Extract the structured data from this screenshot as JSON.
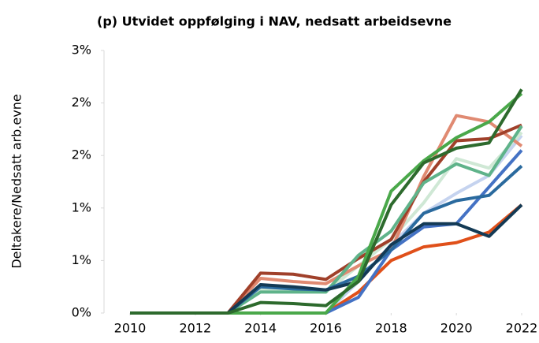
{
  "chart_data": {
    "type": "line",
    "title": "(p) Utvidet oppfølging i NAV, nedsatt arbeidsevne",
    "y_label": "Deltakere/Nedsatt arb.evne",
    "x": [
      2010,
      2011,
      2012,
      2013,
      2014,
      2015,
      2016,
      2017,
      2018,
      2019,
      2020,
      2021,
      2022
    ],
    "xlim": [
      2010,
      2022
    ],
    "xticks": [
      2010,
      2012,
      2014,
      2016,
      2018,
      2020,
      2022
    ],
    "ylim": [
      0,
      2.5
    ],
    "yticks": [
      {
        "value": 0,
        "label": "0%"
      },
      {
        "value": 0.5,
        "label": "1%"
      },
      {
        "value": 1,
        "label": "1%"
      },
      {
        "value": 1.5,
        "label": "2%"
      },
      {
        "value": 2,
        "label": "2%"
      },
      {
        "value": 2.5,
        "label": "3%"
      }
    ],
    "grid": false,
    "series": [
      {
        "color": "#c5d3ef",
        "values": [
          0,
          0,
          0,
          0,
          0,
          0,
          0,
          0.3,
          0.65,
          0.95,
          1.14,
          1.31,
          1.69
        ]
      },
      {
        "color": "#cfe8d5",
        "values": [
          0,
          0,
          0,
          0,
          0.22,
          0.22,
          0.2,
          0.45,
          0.7,
          1.05,
          1.47,
          1.38,
          1.72
        ]
      },
      {
        "color": "#e08a72",
        "values": [
          0,
          0,
          0,
          0,
          0.33,
          0.3,
          0.28,
          0.45,
          0.6,
          1.3,
          1.88,
          1.82,
          1.59
        ]
      },
      {
        "color": "#a0402a",
        "values": [
          0,
          0,
          0,
          0,
          0.38,
          0.37,
          0.32,
          0.52,
          0.7,
          1.25,
          1.64,
          1.66,
          1.79
        ]
      },
      {
        "color": "#5fb38a",
        "values": [
          0,
          0,
          0,
          0,
          0.2,
          0.2,
          0.2,
          0.55,
          0.78,
          1.24,
          1.42,
          1.31,
          1.78
        ]
      },
      {
        "color": "#e0501a",
        "values": [
          0,
          0,
          0,
          0,
          0,
          0,
          0,
          0.2,
          0.5,
          0.63,
          0.67,
          0.77,
          1.03
        ]
      },
      {
        "color": "#4472c4",
        "values": [
          0,
          0,
          0,
          0,
          0,
          0,
          0,
          0.15,
          0.6,
          0.82,
          0.85,
          1.2,
          1.55
        ]
      },
      {
        "color": "#2a6a9e",
        "values": [
          0,
          0,
          0,
          0,
          0.25,
          0.23,
          0.22,
          0.35,
          0.6,
          0.95,
          1.07,
          1.12,
          1.4
        ]
      },
      {
        "color": "#133a55",
        "values": [
          0,
          0,
          0,
          0,
          0.27,
          0.25,
          0.22,
          0.3,
          0.65,
          0.85,
          0.85,
          0.73,
          1.03
        ]
      },
      {
        "color": "#4aa84a",
        "values": [
          0,
          0,
          0,
          0,
          0,
          0,
          0,
          0.35,
          1.16,
          1.45,
          1.67,
          1.82,
          2.09
        ]
      },
      {
        "color": "#2d6a2d",
        "values": [
          0,
          0,
          0,
          0,
          0.1,
          0.09,
          0.07,
          0.3,
          1.03,
          1.43,
          1.57,
          1.62,
          2.13
        ]
      }
    ]
  }
}
